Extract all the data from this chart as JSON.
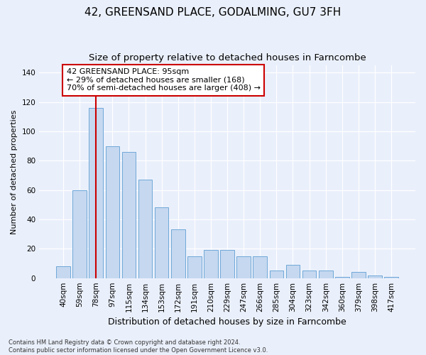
{
  "title": "42, GREENSAND PLACE, GODALMING, GU7 3FH",
  "subtitle": "Size of property relative to detached houses in Farncombe",
  "xlabel": "Distribution of detached houses by size in Farncombe",
  "ylabel": "Number of detached properties",
  "categories": [
    "40sqm",
    "59sqm",
    "78sqm",
    "97sqm",
    "115sqm",
    "134sqm",
    "153sqm",
    "172sqm",
    "191sqm",
    "210sqm",
    "229sqm",
    "247sqm",
    "266sqm",
    "285sqm",
    "304sqm",
    "323sqm",
    "342sqm",
    "360sqm",
    "379sqm",
    "398sqm",
    "417sqm"
  ],
  "values": [
    8,
    60,
    116,
    90,
    86,
    67,
    48,
    33,
    15,
    19,
    19,
    15,
    15,
    5,
    9,
    5,
    5,
    1,
    4,
    2,
    1
  ],
  "bar_color": "#c5d8f0",
  "bar_edge_color": "#6fa8d8",
  "vline_x_index": 2,
  "vline_color": "#cc0000",
  "annotation_text": "42 GREENSAND PLACE: 95sqm\n← 29% of detached houses are smaller (168)\n70% of semi-detached houses are larger (408) →",
  "annotation_box_color": "#ffffff",
  "annotation_box_edge": "#cc0000",
  "ylim": [
    0,
    145
  ],
  "yticks": [
    0,
    20,
    40,
    60,
    80,
    100,
    120,
    140
  ],
  "background_color": "#eaf0fb",
  "footer_text": "Contains HM Land Registry data © Crown copyright and database right 2024.\nContains public sector information licensed under the Open Government Licence v3.0.",
  "title_fontsize": 11,
  "subtitle_fontsize": 9.5,
  "xlabel_fontsize": 9,
  "ylabel_fontsize": 8,
  "tick_fontsize": 7.5,
  "annotation_fontsize": 8
}
